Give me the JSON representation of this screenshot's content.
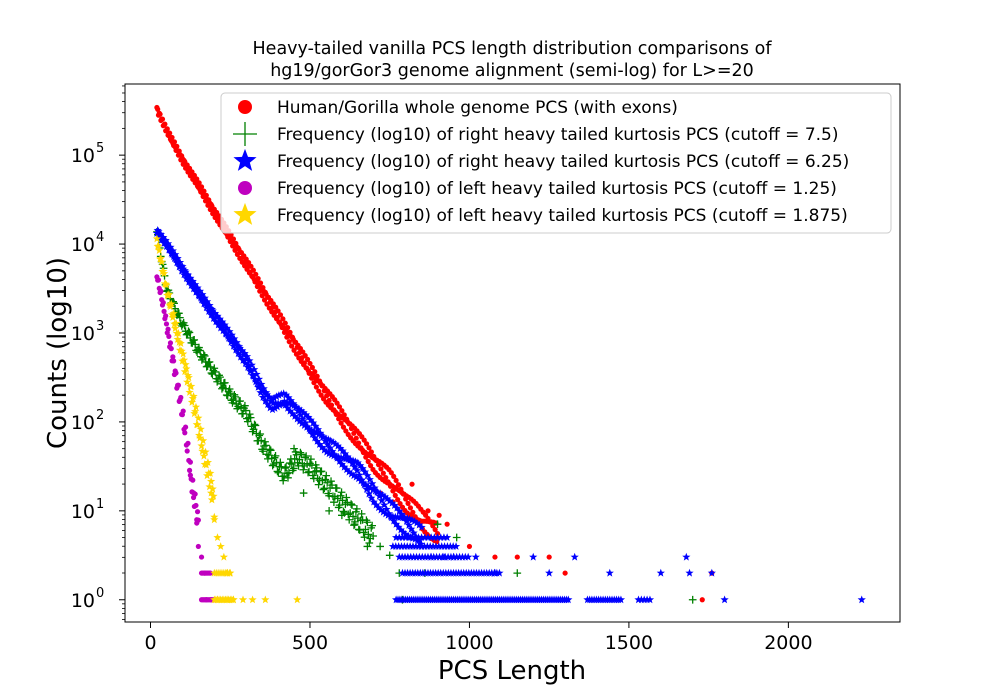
{
  "chart_data": {
    "type": "scatter",
    "title_lines": [
      "Heavy-tailed vanilla PCS length distribution comparisons of",
      "hg19/gorGor3 genome alignment (semi-log) for L>=20"
    ],
    "xlabel": "PCS Length",
    "ylabel": "Counts (log10)",
    "xlim": [
      -80,
      2350
    ],
    "ylim_log10": [
      -0.25,
      5.8
    ],
    "y_scale": "log",
    "grid": false,
    "legend_position": "upper-right",
    "x_ticks": [
      0,
      500,
      1000,
      1500,
      2000
    ],
    "x_tick_labels": [
      "0",
      "500",
      "1000",
      "1500",
      "2000"
    ],
    "y_ticks_exponent": [
      0,
      1,
      2,
      3,
      4,
      5
    ],
    "y_tick_labels": [
      "0",
      "1",
      "2",
      "3",
      "4",
      "5"
    ],
    "y_tick_base": "10",
    "series": [
      {
        "name": "Human/Gorilla whole genome PCS (with exons)",
        "marker": "circle",
        "color": "#ff0000",
        "curve": [
          [
            20,
            5.52
          ],
          [
            50,
            5.28
          ],
          [
            100,
            4.95
          ],
          [
            150,
            4.66
          ],
          [
            200,
            4.36
          ],
          [
            250,
            4.07
          ],
          [
            300,
            3.78
          ],
          [
            350,
            3.48
          ],
          [
            400,
            3.18
          ],
          [
            450,
            2.88
          ],
          [
            500,
            2.58
          ],
          [
            550,
            2.3
          ],
          [
            600,
            2.05
          ],
          [
            650,
            1.8
          ],
          [
            700,
            1.55
          ],
          [
            750,
            1.35
          ],
          [
            800,
            1.1
          ],
          [
            850,
            0.9
          ],
          [
            900,
            0.75
          ]
        ],
        "scatter": [
          [
            820,
            1.3
          ],
          [
            870,
            1.0
          ],
          [
            905,
            0.95
          ],
          [
            930,
            0.85
          ],
          [
            1000,
            0.6
          ],
          [
            1080,
            0.48
          ],
          [
            1150,
            0.48
          ],
          [
            1250,
            0.48
          ],
          [
            1300,
            0.3
          ],
          [
            1730,
            0.0
          ],
          [
            1760,
            0.3
          ],
          [
            720,
            1.2
          ],
          [
            760,
            1.1
          ]
        ]
      },
      {
        "name": "Frequency (log10) of right heavy tailed kurtosis PCS (cutoff = 7.5)",
        "marker": "plus",
        "color": "#008000",
        "curve": [
          [
            20,
            4.15
          ],
          [
            50,
            3.5
          ],
          [
            80,
            3.25
          ],
          [
            100,
            3.1
          ],
          [
            150,
            2.8
          ],
          [
            200,
            2.55
          ],
          [
            250,
            2.3
          ],
          [
            300,
            2.1
          ],
          [
            350,
            1.75
          ],
          [
            380,
            1.6
          ],
          [
            420,
            1.4
          ],
          [
            460,
            1.6
          ],
          [
            500,
            1.5
          ],
          [
            550,
            1.3
          ],
          [
            600,
            1.1
          ],
          [
            650,
            0.9
          ],
          [
            700,
            0.7
          ]
        ],
        "scatter": [
          [
            450,
            1.7
          ],
          [
            480,
            1.2
          ],
          [
            520,
            1.45
          ],
          [
            560,
            1.0
          ],
          [
            600,
            0.95
          ],
          [
            640,
            0.85
          ],
          [
            680,
            0.6
          ],
          [
            720,
            0.6
          ],
          [
            750,
            0.5
          ],
          [
            780,
            0.3
          ],
          [
            790,
            0.0
          ],
          [
            860,
            0.3
          ],
          [
            900,
            0.85
          ],
          [
            960,
            0.7
          ],
          [
            1150,
            0.3
          ],
          [
            1700,
            0.0
          ]
        ]
      },
      {
        "name": "Frequency (log10) of right heavy tailed kurtosis PCS (cutoff = 6.25)",
        "marker": "star",
        "color": "#0000ff",
        "curve": [
          [
            20,
            4.15
          ],
          [
            50,
            4.0
          ],
          [
            100,
            3.72
          ],
          [
            150,
            3.45
          ],
          [
            200,
            3.2
          ],
          [
            250,
            2.95
          ],
          [
            300,
            2.7
          ],
          [
            350,
            2.35
          ],
          [
            380,
            2.2
          ],
          [
            420,
            2.25
          ],
          [
            450,
            2.15
          ],
          [
            500,
            1.95
          ],
          [
            550,
            1.75
          ],
          [
            600,
            1.6
          ],
          [
            650,
            1.45
          ],
          [
            700,
            1.2
          ],
          [
            750,
            1.0
          ],
          [
            800,
            0.85
          ],
          [
            850,
            0.7
          ]
        ],
        "scatter": [
          [
            850,
            0.6
          ],
          [
            880,
            0.48
          ],
          [
            920,
            0.48
          ],
          [
            950,
            0.48
          ],
          [
            1020,
            0.48
          ],
          [
            1080,
            0.3
          ],
          [
            1200,
            0.48
          ],
          [
            1250,
            0.3
          ],
          [
            1330,
            0.48
          ],
          [
            1440,
            0.3
          ],
          [
            1600,
            0.3
          ],
          [
            1680,
            0.48
          ],
          [
            1690,
            0.3
          ],
          [
            1760,
            0.3
          ],
          [
            1800,
            0.0
          ],
          [
            2230,
            0.0
          ]
        ]
      },
      {
        "name": "Frequency (log10) of left heavy tailed kurtosis PCS (cutoff = 1.25)",
        "marker": "circle",
        "color": "#bf00bf",
        "curve": [
          [
            20,
            3.65
          ],
          [
            40,
            3.3
          ],
          [
            60,
            2.9
          ],
          [
            80,
            2.5
          ],
          [
            100,
            2.1
          ],
          [
            110,
            1.85
          ],
          [
            120,
            1.6
          ],
          [
            130,
            1.3
          ],
          [
            140,
            1.1
          ],
          [
            150,
            0.85
          ]
        ],
        "scatter": [
          [
            125,
            1.4
          ],
          [
            135,
            1.15
          ],
          [
            145,
            0.9
          ],
          [
            150,
            0.6
          ],
          [
            160,
            0.48
          ],
          [
            170,
            0.3
          ],
          [
            175,
            0.0
          ],
          [
            190,
            0.0
          ],
          [
            200,
            0.0
          ]
        ]
      },
      {
        "name": "Frequency (log10) of left heavy tailed kurtosis PCS (cutoff = 1.875)",
        "marker": "star",
        "color": "#ffd700",
        "curve": [
          [
            20,
            4.05
          ],
          [
            50,
            3.5
          ],
          [
            80,
            3.05
          ],
          [
            100,
            2.75
          ],
          [
            130,
            2.3
          ],
          [
            150,
            1.95
          ],
          [
            170,
            1.6
          ],
          [
            190,
            1.3
          ],
          [
            200,
            1.05
          ]
        ],
        "scatter": [
          [
            190,
            1.2
          ],
          [
            200,
            0.9
          ],
          [
            210,
            0.7
          ],
          [
            220,
            0.6
          ],
          [
            230,
            0.48
          ],
          [
            240,
            0.3
          ],
          [
            250,
            0.3
          ],
          [
            210,
            0.0
          ],
          [
            240,
            0.0
          ],
          [
            260,
            0.0
          ],
          [
            290,
            0.0
          ],
          [
            320,
            0.0
          ],
          [
            360,
            0.0
          ],
          [
            460,
            0.0
          ]
        ]
      }
    ]
  }
}
